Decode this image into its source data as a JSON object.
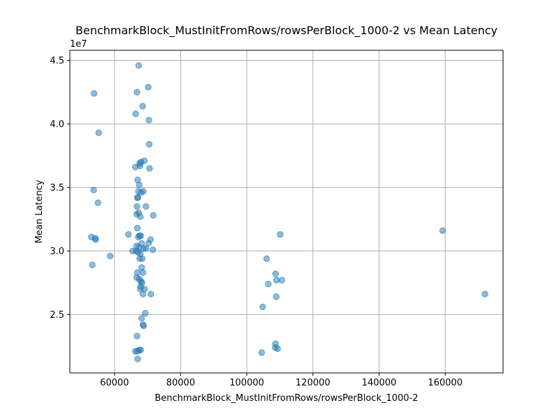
{
  "chart_data": {
    "type": "scatter",
    "title": "BenchmarkBlock_MustInitFromRows/rowsPerBlock_1000-2 vs Mean Latency",
    "xlabel": "BenchmarkBlock_MustInitFromRows/rowsPerBlock_1000-2",
    "ylabel": "Mean Latency",
    "y_offset_label": "1e7",
    "xlim": [
      46500,
      177500
    ],
    "ylim": [
      20400000.0,
      45800000.0
    ],
    "x_ticks": [
      60000,
      80000,
      100000,
      120000,
      140000,
      160000
    ],
    "x_tick_labels": [
      "60000",
      "80000",
      "100000",
      "120000",
      "140000",
      "160000"
    ],
    "y_ticks": [
      25000000.0,
      30000000.0,
      35000000.0,
      40000000.0,
      45000000.0
    ],
    "y_tick_labels": [
      "2.5",
      "3.0",
      "3.5",
      "4.0",
      "4.5"
    ],
    "grid": true,
    "marker_color": "#1f77b4",
    "marker_opacity": 0.5,
    "points": [
      [
        53800,
        42400000.0
      ],
      [
        55200,
        39300000.0
      ],
      [
        53700,
        34800000.0
      ],
      [
        55000,
        33800000.0
      ],
      [
        53000,
        31100000.0
      ],
      [
        54200,
        31000000.0
      ],
      [
        54300,
        30900000.0
      ],
      [
        53300,
        28900000.0
      ],
      [
        58700,
        29600000.0
      ],
      [
        64200,
        31300000.0
      ],
      [
        65500,
        30000000.0
      ],
      [
        67300,
        44600000.0
      ],
      [
        66800,
        42500000.0
      ],
      [
        70200,
        42900000.0
      ],
      [
        68500,
        41400000.0
      ],
      [
        66400,
        40800000.0
      ],
      [
        70400,
        40300000.0
      ],
      [
        70500,
        38400000.0
      ],
      [
        69000,
        37100000.0
      ],
      [
        66300,
        36600000.0
      ],
      [
        67600,
        36900000.0
      ],
      [
        67700,
        36700000.0
      ],
      [
        68000,
        37000000.0
      ],
      [
        70600,
        36500000.0
      ],
      [
        67000,
        35600000.0
      ],
      [
        67500,
        35200000.0
      ],
      [
        67200,
        34700000.0
      ],
      [
        68100,
        34600000.0
      ],
      [
        68700,
        34700000.0
      ],
      [
        67100,
        34200000.0
      ],
      [
        66900,
        34200000.0
      ],
      [
        66800,
        33500000.0
      ],
      [
        69500,
        33500000.0
      ],
      [
        66700,
        32900000.0
      ],
      [
        67300,
        33000000.0
      ],
      [
        67800,
        32700000.0
      ],
      [
        71700,
        32800000.0
      ],
      [
        66900,
        31800000.0
      ],
      [
        67200,
        31100000.0
      ],
      [
        67600,
        31200000.0
      ],
      [
        67900,
        31200000.0
      ],
      [
        70900,
        30900000.0
      ],
      [
        70300,
        30600000.0
      ],
      [
        68200,
        30600000.0
      ],
      [
        66700,
        30400000.0
      ],
      [
        67400,
        30300000.0
      ],
      [
        68800,
        30200000.0
      ],
      [
        69500,
        30200000.0
      ],
      [
        71600,
        30100000.0
      ],
      [
        66600,
        30000000.0
      ],
      [
        67100,
        29900000.0
      ],
      [
        67800,
        29800000.0
      ],
      [
        67600,
        29400000.0
      ],
      [
        68400,
        29400000.0
      ],
      [
        68200,
        28700000.0
      ],
      [
        66900,
        28300000.0
      ],
      [
        68600,
        28300000.0
      ],
      [
        66700,
        27900000.0
      ],
      [
        67500,
        27800000.0
      ],
      [
        68000,
        27600000.0
      ],
      [
        68300,
        27500000.0
      ],
      [
        67900,
        27200000.0
      ],
      [
        67800,
        27000000.0
      ],
      [
        69100,
        27000000.0
      ],
      [
        68600,
        26600000.0
      ],
      [
        71000,
        26600000.0
      ],
      [
        69300,
        25100000.0
      ],
      [
        68200,
        24700000.0
      ],
      [
        68600,
        24200000.0
      ],
      [
        68800,
        24100000.0
      ],
      [
        66800,
        23300000.0
      ],
      [
        67500,
        22200000.0
      ],
      [
        67900,
        22200000.0
      ],
      [
        66300,
        22100000.0
      ],
      [
        66900,
        22100000.0
      ],
      [
        67000,
        21500000.0
      ],
      [
        110100,
        31300000.0
      ],
      [
        106000,
        29400000.0
      ],
      [
        108700,
        28200000.0
      ],
      [
        109000,
        27700000.0
      ],
      [
        110600,
        27700000.0
      ],
      [
        106500,
        27400000.0
      ],
      [
        108900,
        26400000.0
      ],
      [
        104800,
        25600000.0
      ],
      [
        108700,
        22700000.0
      ],
      [
        108600,
        22400000.0
      ],
      [
        109300,
        22300000.0
      ],
      [
        104500,
        22000000.0
      ],
      [
        159200,
        31600000.0
      ],
      [
        172000,
        26600000.0
      ]
    ]
  }
}
